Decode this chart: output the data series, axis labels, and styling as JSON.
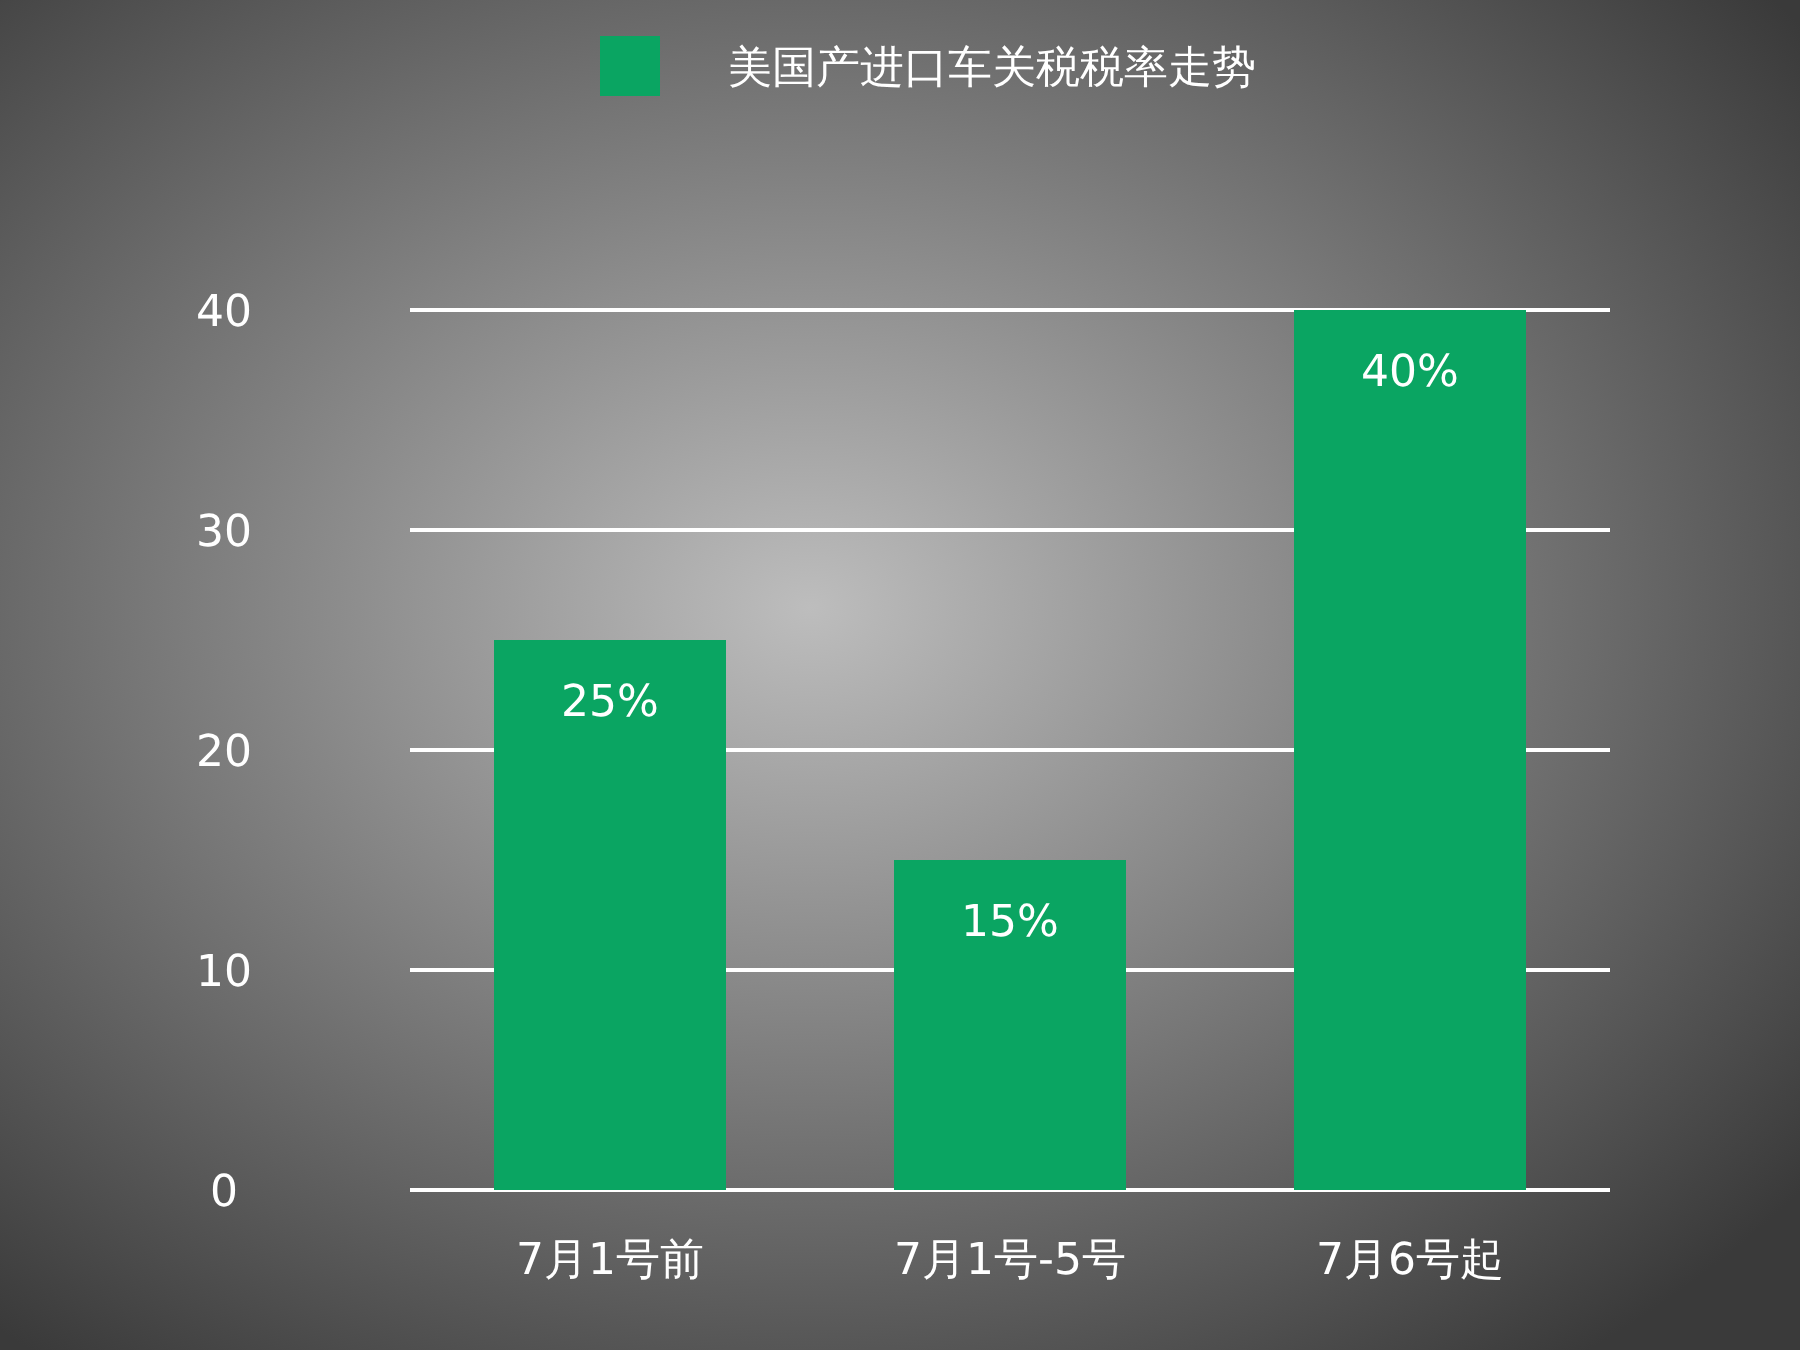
{
  "chart_data": {
    "type": "bar",
    "categories": [
      "7月1号前",
      "7月1号-5号",
      "7月6号起"
    ],
    "series": [
      {
        "name": "美国产进口车关税税率走势",
        "color": "#0aa562",
        "values": [
          25,
          15,
          40
        ],
        "value_labels": [
          "25%",
          "15%",
          "40%"
        ]
      }
    ],
    "ylim": [
      0,
      40
    ],
    "yticks": [
      0,
      10,
      20,
      30,
      40
    ],
    "grid": "y",
    "legend": "top"
  }
}
